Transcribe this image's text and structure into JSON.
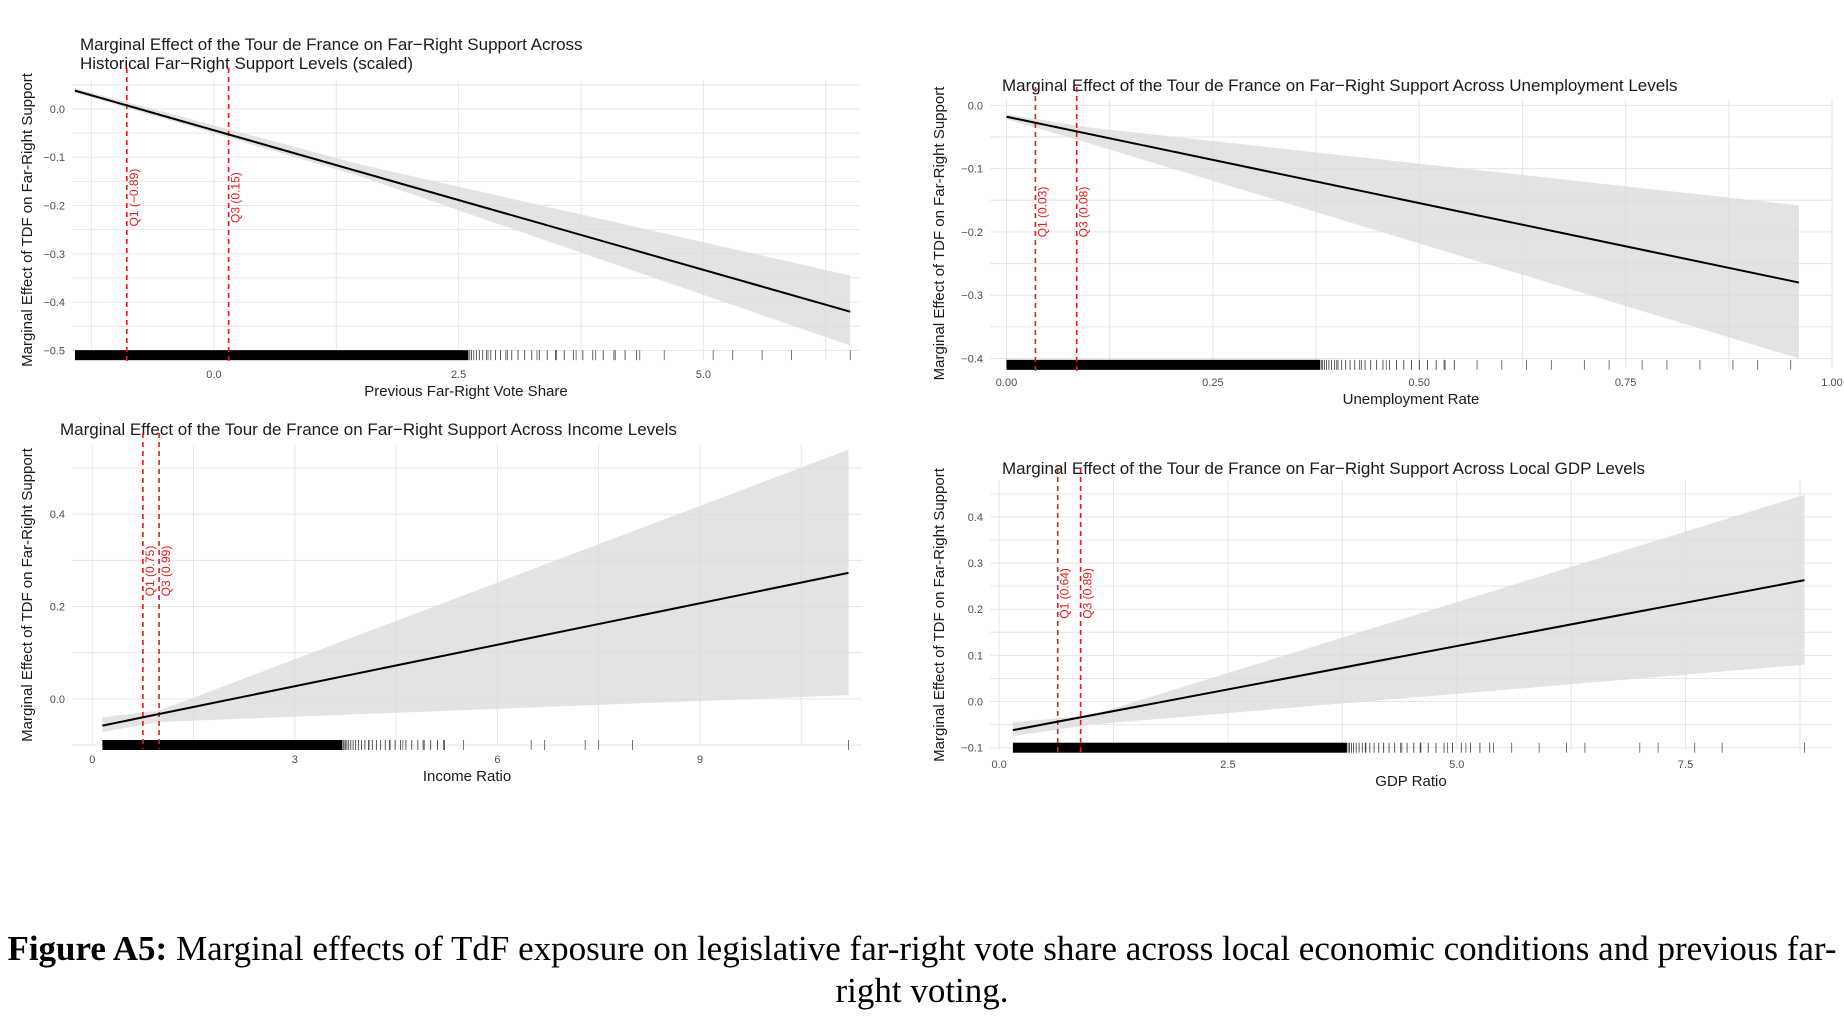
{
  "figure": {
    "label": "Figure A5:",
    "caption": "Marginal effects of TdF exposure on legislative far-right vote share across local economic conditions and previous far-right voting."
  },
  "colors": {
    "line": "#000000",
    "band": "#d9d9d9",
    "quartile": "#e41a1c",
    "grid": "#e6e6e6"
  },
  "chart_data": [
    {
      "type": "line",
      "title": [
        "Marginal Effect of the Tour de France on Far−Right Support Across",
        " Historical Far−Right Support Levels (scaled)"
      ],
      "xlabel": "Previous Far-Right Vote Share",
      "ylabel": "Marginal Effect of TDF on Far-Right Support",
      "xlim": [
        -1.45,
        6.6
      ],
      "ylim": [
        -0.52,
        0.06
      ],
      "xticks": [
        0.0,
        2.5,
        5.0
      ],
      "xtick_labels": [
        "0.0",
        "2.5",
        "5.0"
      ],
      "yticks": [
        0.0,
        -0.1,
        -0.2,
        -0.3,
        -0.4,
        -0.5
      ],
      "ytick_labels": [
        "0.0",
        "−0.1",
        "−0.2",
        "−0.3",
        "−0.4",
        "−0.5"
      ],
      "line": {
        "x": [
          -1.42,
          6.5
        ],
        "y": [
          0.038,
          -0.42
        ]
      },
      "band": {
        "x": [
          -1.42,
          1.5,
          6.5
        ],
        "lower": [
          0.034,
          -0.14,
          -0.49
        ],
        "upper": [
          0.043,
          -0.115,
          -0.345
        ]
      },
      "quartiles": [
        {
          "label": "Q1 (−0.89)",
          "x": -0.89
        },
        {
          "label": "Q3 (0.15)",
          "x": 0.15
        }
      ],
      "rug": {
        "y": -0.51,
        "dense_from": -1.42,
        "dense_to": 2.6,
        "sparse": [
          2.8,
          3.0,
          3.3,
          3.5,
          3.7,
          3.9,
          4.1,
          4.35,
          4.6,
          5.1,
          5.3,
          5.6,
          5.9,
          6.5
        ]
      }
    },
    {
      "type": "line",
      "title": [
        "Marginal Effect of the Tour de France on Far−Right Support Across Unemployment Levels"
      ],
      "xlabel": "Unemployment Rate",
      "ylabel": "Marginal Effect of TDF on Far-Right Support",
      "xlim": [
        -0.02,
        1.0
      ],
      "ylim": [
        -0.415,
        0.01
      ],
      "xticks": [
        0.0,
        0.25,
        0.5,
        0.75,
        1.0
      ],
      "xtick_labels": [
        "0.00",
        "0.25",
        "0.50",
        "0.75",
        "1.00"
      ],
      "yticks": [
        0.0,
        -0.1,
        -0.2,
        -0.3,
        -0.4
      ],
      "ytick_labels": [
        "0.0",
        "−0.1",
        "−0.2",
        "−0.3",
        "−0.4"
      ],
      "line": {
        "x": [
          0.0,
          0.96
        ],
        "y": [
          -0.018,
          -0.28
        ]
      },
      "band": {
        "x": [
          0.0,
          0.1,
          0.96
        ],
        "lower": [
          -0.022,
          -0.06,
          -0.4
        ],
        "upper": [
          -0.014,
          -0.035,
          -0.158
        ]
      },
      "quartiles": [
        {
          "label": "Q1 (0.03)",
          "x": 0.035
        },
        {
          "label": "Q3 (0.08)",
          "x": 0.085
        }
      ],
      "rug": {
        "y": -0.41,
        "dense_from": 0.0,
        "dense_to": 0.38,
        "sparse": [
          0.4,
          0.43,
          0.46,
          0.5,
          0.53,
          0.57,
          0.6,
          0.63,
          0.66,
          0.7,
          0.73,
          0.77,
          0.8,
          0.84,
          0.88,
          0.91,
          0.95
        ]
      }
    },
    {
      "type": "line",
      "title": [
        "Marginal Effect of the Tour de France on Far−Right Support Across Income Levels"
      ],
      "xlabel": "Income Ratio",
      "ylabel": "Marginal Effect of TDF on Far-Right Support",
      "xlim": [
        -0.3,
        11.4
      ],
      "ylim": [
        -0.1,
        0.55
      ],
      "xticks": [
        0,
        3,
        6,
        9
      ],
      "xtick_labels": [
        "0",
        "3",
        "6",
        "9"
      ],
      "yticks": [
        0.0,
        0.2,
        0.4
      ],
      "ytick_labels": [
        "0.0",
        "0.2",
        "0.4"
      ],
      "line": {
        "x": [
          0.15,
          11.2
        ],
        "y": [
          -0.058,
          0.273
        ]
      },
      "band": {
        "x": [
          0.15,
          1.0,
          11.2
        ],
        "lower": [
          -0.072,
          -0.05,
          0.008
        ],
        "upper": [
          -0.04,
          -0.025,
          0.54
        ]
      },
      "quartiles": [
        {
          "label": "Q1 (0.75)",
          "x": 0.75
        },
        {
          "label": "Q3 (0.99)",
          "x": 0.99
        }
      ],
      "rug": {
        "y": -0.1,
        "dense_from": 0.15,
        "dense_to": 3.7,
        "sparse": [
          3.9,
          4.1,
          4.4,
          4.6,
          4.9,
          5.2,
          5.5,
          6.5,
          6.7,
          7.3,
          7.5,
          8.0,
          11.2
        ]
      }
    },
    {
      "type": "line",
      "title": [
        "Marginal Effect of the Tour de France on Far−Right Support Across Local GDP Levels"
      ],
      "xlabel": "GDP Ratio",
      "ylabel": "Marginal Effect of TDF on Far-Right Support",
      "xlim": [
        -0.1,
        9.1
      ],
      "ylim": [
        -0.105,
        0.48
      ],
      "xticks": [
        0.0,
        2.5,
        5.0,
        7.5
      ],
      "xtick_labels": [
        "0.0",
        "2.5",
        "5.0",
        "7.5"
      ],
      "yticks": [
        -0.1,
        0.0,
        0.1,
        0.2,
        0.3,
        0.4
      ],
      "ytick_labels": [
        "−0.1",
        "0.0",
        "0.1",
        "0.2",
        "0.3",
        "0.4"
      ],
      "line": {
        "x": [
          0.15,
          8.8
        ],
        "y": [
          -0.062,
          0.263
        ]
      },
      "band": {
        "x": [
          0.15,
          1.0,
          8.8
        ],
        "lower": [
          -0.075,
          -0.05,
          0.08
        ],
        "upper": [
          -0.045,
          -0.03,
          0.448
        ]
      },
      "quartiles": [
        {
          "label": "Q1 (0.64)",
          "x": 0.64
        },
        {
          "label": "Q3 (0.89)",
          "x": 0.89
        }
      ],
      "rug": {
        "y": -0.1,
        "dense_from": 0.15,
        "dense_to": 3.8,
        "sparse": [
          4.0,
          4.2,
          4.4,
          4.6,
          4.9,
          5.1,
          5.4,
          5.6,
          5.9,
          6.2,
          6.4,
          7.0,
          7.2,
          7.6,
          7.9,
          8.8
        ]
      }
    }
  ]
}
